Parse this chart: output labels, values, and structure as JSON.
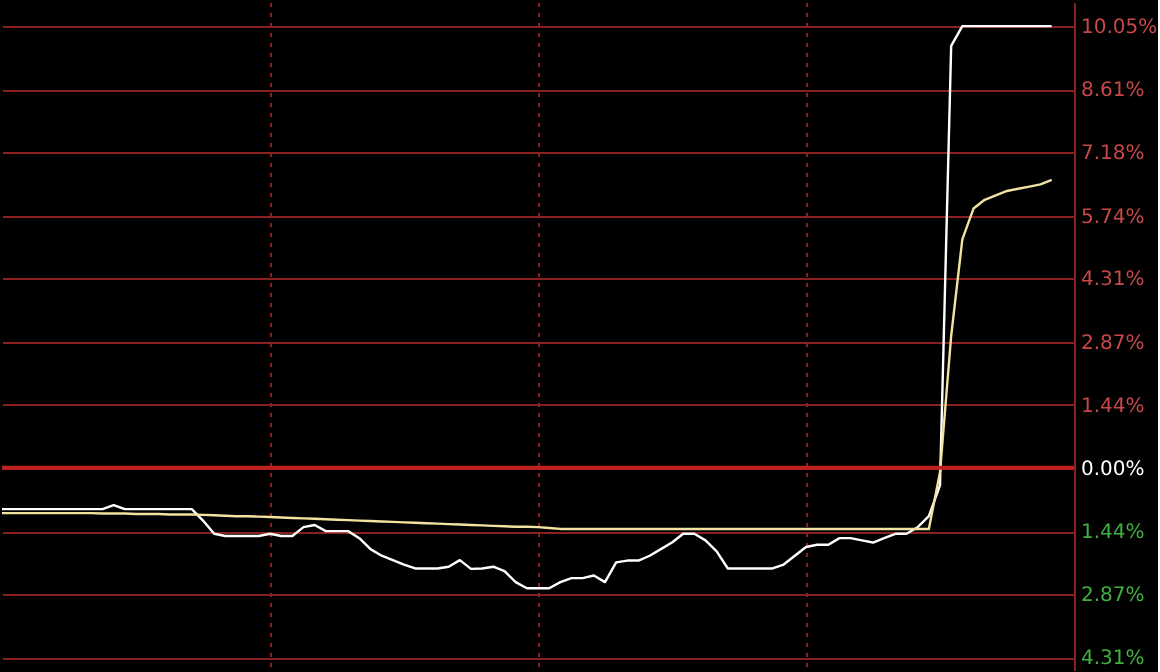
{
  "chart_data": {
    "type": "line",
    "categories": [
      null,
      null,
      null,
      null,
      null,
      null,
      null,
      null,
      null,
      null,
      null,
      null,
      null,
      null,
      null,
      null,
      null,
      null,
      null,
      null,
      null,
      null,
      null,
      null,
      null,
      null,
      null,
      null,
      null,
      null,
      null,
      null,
      null,
      null,
      null,
      null,
      null,
      null,
      null,
      null,
      null,
      null,
      null,
      null,
      null,
      null,
      null,
      null,
      null,
      null,
      null,
      null,
      null,
      null,
      null,
      null,
      null,
      null,
      null,
      null,
      null,
      null,
      null,
      null,
      null,
      null,
      null,
      null,
      null,
      null,
      null,
      null,
      null,
      null,
      null,
      null,
      null,
      null,
      null,
      null,
      null,
      null,
      null,
      null,
      null,
      null,
      null,
      null,
      null,
      null,
      null,
      null,
      null,
      null,
      null,
      null,
      null
    ],
    "series": [
      {
        "color": "#ffffff",
        "values": [
          -0.94,
          -0.94,
          -0.94,
          -0.94,
          -0.94,
          -0.94,
          -0.94,
          -0.94,
          -0.94,
          -0.94,
          -0.85,
          -0.94,
          -0.94,
          -0.94,
          -0.94,
          -0.94,
          -0.94,
          -0.94,
          -1.2,
          -1.5,
          -1.55,
          -1.55,
          -1.55,
          -1.55,
          -1.5,
          -1.55,
          -1.55,
          -1.35,
          -1.3,
          -1.44,
          -1.44,
          -1.44,
          -1.6,
          -1.85,
          -2.0,
          -2.1,
          -2.2,
          -2.29,
          -2.29,
          -2.29,
          -2.25,
          -2.1,
          -2.3,
          -2.29,
          -2.25,
          -2.35,
          -2.6,
          -2.74,
          -2.74,
          -2.74,
          -2.6,
          -2.51,
          -2.51,
          -2.45,
          -2.6,
          -2.15,
          -2.11,
          -2.11,
          -2.0,
          -1.85,
          -1.7,
          -1.5,
          -1.5,
          -1.65,
          -1.9,
          -2.29,
          -2.29,
          -2.29,
          -2.29,
          -2.29,
          -2.2,
          -2.0,
          -1.8,
          -1.75,
          -1.75,
          -1.6,
          -1.6,
          -1.65,
          -1.7,
          -1.6,
          -1.5,
          -1.5,
          -1.35,
          -1.1,
          -0.4,
          9.6,
          10.05,
          10.05,
          10.05,
          10.05,
          10.05,
          10.05,
          10.05,
          10.05,
          10.05,
          null,
          null
        ]
      },
      {
        "color": "#f2e3a0",
        "values": [
          -1.03,
          -1.03,
          -1.03,
          -1.03,
          -1.03,
          -1.03,
          -1.03,
          -1.03,
          -1.03,
          -1.04,
          -1.04,
          -1.04,
          -1.05,
          -1.05,
          -1.05,
          -1.06,
          -1.06,
          -1.06,
          -1.07,
          -1.08,
          -1.09,
          -1.1,
          -1.1,
          -1.11,
          -1.12,
          -1.13,
          -1.14,
          -1.15,
          -1.16,
          -1.17,
          -1.18,
          -1.19,
          -1.2,
          -1.21,
          -1.22,
          -1.23,
          -1.24,
          -1.25,
          -1.26,
          -1.27,
          -1.28,
          -1.29,
          -1.3,
          -1.31,
          -1.32,
          -1.33,
          -1.34,
          -1.34,
          -1.35,
          -1.37,
          -1.39,
          -1.39,
          -1.39,
          -1.39,
          -1.39,
          -1.39,
          -1.39,
          -1.39,
          -1.39,
          -1.39,
          -1.39,
          -1.39,
          -1.39,
          -1.39,
          -1.39,
          -1.39,
          -1.39,
          -1.39,
          -1.39,
          -1.39,
          -1.39,
          -1.39,
          -1.39,
          -1.39,
          -1.39,
          -1.39,
          -1.39,
          -1.39,
          -1.39,
          -1.39,
          -1.39,
          -1.39,
          -1.39,
          -1.39,
          -0.1,
          3.0,
          5.2,
          5.9,
          6.1,
          6.2,
          6.3,
          6.35,
          6.4,
          6.45,
          6.55,
          null,
          null
        ]
      }
    ],
    "ylim": [
      -4.6,
      10.6
    ],
    "yticks": [
      {
        "value": 10.05,
        "label": "10.05%"
      },
      {
        "value": 8.61,
        "label": "8.61%"
      },
      {
        "value": 7.18,
        "label": "7.18%"
      },
      {
        "value": 5.74,
        "label": "5.74%"
      },
      {
        "value": 4.31,
        "label": "4.31%"
      },
      {
        "value": 2.87,
        "label": "2.87%"
      },
      {
        "value": 1.44,
        "label": "1.44%"
      },
      {
        "value": 0,
        "label": "0.00%"
      },
      {
        "value": -1.44,
        "label": "1.44%"
      },
      {
        "value": -2.87,
        "label": "2.87%"
      },
      {
        "value": -4.31,
        "label": "4.31%"
      }
    ],
    "ref_lines": [
      {
        "axis": "y",
        "value": 0,
        "color": "#c02020"
      }
    ],
    "grid": true,
    "tick_labels": "y",
    "line_style": "solid",
    "marker": "none"
  }
}
